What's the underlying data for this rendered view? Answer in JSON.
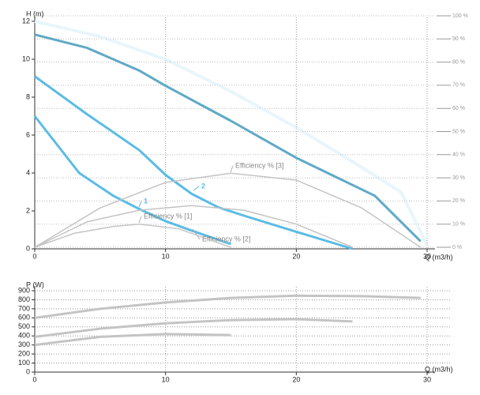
{
  "chart_data": [
    {
      "type": "line",
      "ylabel": "H (m)",
      "xlabel": "Q (m3/h)",
      "xlim": [
        0,
        30
      ],
      "xticks": [
        0,
        10,
        20,
        30
      ],
      "ylim": [
        0,
        12
      ],
      "yticks": [
        0,
        2,
        4,
        6,
        8,
        10,
        12
      ],
      "y2lim": [
        0,
        100
      ],
      "y2ticks": [
        {
          "value": 0,
          "label": "0 %"
        },
        {
          "value": 10,
          "label": "10 %"
        },
        {
          "value": 20,
          "label": "20 %"
        },
        {
          "value": 30,
          "label": "30 %"
        },
        {
          "value": 40,
          "label": "40 %"
        },
        {
          "value": 50,
          "label": "50 %"
        },
        {
          "value": 60,
          "label": "60 %"
        },
        {
          "value": 70,
          "label": "70 %"
        },
        {
          "value": 80,
          "label": "80 %"
        },
        {
          "value": 90,
          "label": "90 %"
        },
        {
          "value": 100,
          "label": "100 %"
        }
      ],
      "grid": true,
      "series": [
        {
          "color": "#d2ebf8",
          "style": "dotted",
          "x": [
            0,
            5,
            10,
            15,
            20,
            25,
            28,
            30
          ],
          "values": [
            12,
            11.2,
            10,
            8.3,
            6.4,
            4.3,
            3,
            0.2
          ]
        },
        {
          "color": "#5fa9c6",
          "x": [
            0,
            4,
            8,
            10,
            15,
            20,
            26,
            29.5
          ],
          "values": [
            11.3,
            10.6,
            9.4,
            8.6,
            6.75,
            4.8,
            2.8,
            0.4
          ]
        },
        {
          "name": "2",
          "color": "#5bbce4",
          "x": [
            0,
            4,
            8,
            10,
            12,
            14,
            16,
            20,
            24.3
          ],
          "values": [
            9.1,
            7.1,
            5.2,
            3.9,
            2.9,
            2.2,
            1.75,
            0.9,
            0
          ]
        },
        {
          "name": "1",
          "color": "#5bbce4",
          "x": [
            0,
            3.4,
            6,
            8,
            10,
            12,
            15
          ],
          "values": [
            7,
            4,
            2.8,
            2.1,
            1.46,
            0.96,
            0.25
          ]
        },
        {
          "name": "Efficiency % [3]",
          "axis": "y2",
          "color": "#c4c4c4",
          "x": [
            0,
            5,
            10,
            15,
            20,
            25,
            29.5
          ],
          "values": [
            0,
            17,
            28,
            32,
            29,
            17,
            0
          ]
        },
        {
          "name": "Efficiency % [2]",
          "axis": "y2",
          "color": "#c4c4c4",
          "x": [
            0,
            4,
            8,
            12,
            16,
            20,
            24.3
          ],
          "values": [
            0,
            11,
            16,
            18,
            16,
            10,
            0
          ]
        },
        {
          "name": "Efficiency % [1]",
          "axis": "y2",
          "color": "#c4c4c4",
          "x": [
            0,
            3,
            6,
            8,
            11,
            15
          ],
          "values": [
            0,
            6,
            9,
            10,
            8,
            0
          ]
        }
      ]
    },
    {
      "type": "line",
      "ylabel": "P (W)",
      "xlabel": "Q (m3/h)",
      "xlim": [
        0,
        30
      ],
      "xticks": [
        0,
        10,
        20,
        30
      ],
      "ylim": [
        0,
        900
      ],
      "yticks": [
        0,
        100,
        200,
        300,
        400,
        500,
        600,
        700,
        800,
        900
      ],
      "grid": true,
      "series": [
        {
          "color": "#c4c4c4",
          "x": [
            0,
            5,
            10,
            15,
            20,
            25,
            29.5
          ],
          "values": [
            600,
            700,
            770,
            820,
            845,
            840,
            820
          ]
        },
        {
          "color": "#c4c4c4",
          "x": [
            0,
            5,
            10,
            15,
            20,
            24.3
          ],
          "values": [
            390,
            480,
            540,
            575,
            585,
            560
          ]
        },
        {
          "color": "#c4c4c4",
          "x": [
            0,
            5,
            10,
            15
          ],
          "values": [
            300,
            390,
            420,
            410
          ]
        }
      ]
    }
  ]
}
